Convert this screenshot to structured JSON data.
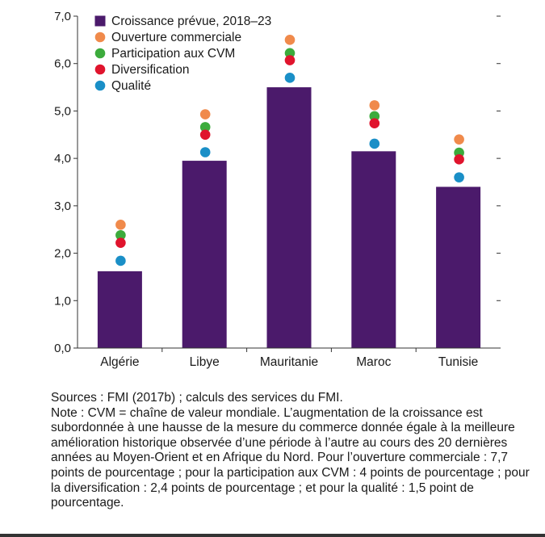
{
  "chart_data": {
    "type": "bar",
    "categories": [
      "Algérie",
      "Libye",
      "Mauritanie",
      "Maroc",
      "Tunisie"
    ],
    "bar_series": {
      "name": "Croissance prévue, 2018–23",
      "color": "#4b1a6b",
      "values": [
        1.62,
        3.95,
        5.5,
        4.15,
        3.4
      ]
    },
    "point_series": [
      {
        "name": "Ouverture commerciale",
        "color": "#f08a4b",
        "values": [
          2.6,
          4.93,
          6.5,
          5.12,
          4.4
        ]
      },
      {
        "name": "Participation aux CVM",
        "color": "#3cab3c",
        "values": [
          2.38,
          4.66,
          6.22,
          4.89,
          4.12
        ]
      },
      {
        "name": "Diversification",
        "color": "#e0142d",
        "values": [
          2.22,
          4.5,
          6.07,
          4.74,
          3.98
        ]
      },
      {
        "name": "Qualité",
        "color": "#1a8fc7",
        "values": [
          1.84,
          4.13,
          5.7,
          4.31,
          3.6
        ]
      }
    ],
    "ylim": [
      0,
      7
    ],
    "yticks": [
      "0,0",
      "1,0",
      "2,0",
      "3,0",
      "4,0",
      "5,0",
      "6,0",
      "7,0"
    ],
    "legend_position": "top-left",
    "grid": false
  },
  "notes": {
    "sources": "Sources : FMI (2017b) ; calculs des services du FMI.",
    "note": "Note : CVM = chaîne de valeur mondiale. L’augmentation de la croissance est subordonnée à une hausse de la mesure du commerce donnée égale à la meilleure amélioration historique observée d’une période à l’autre au cours des 20 dernières années au Moyen-Orient et en Afrique du Nord. Pour l’ouverture commerciale : 7,7 points de pourcentage ; pour la participation aux CVM : 4 points de pourcentage ; pour la diversification : 2,4 points de pourcentage ; et pour la qualité : 1,5 point de pourcentage."
  }
}
